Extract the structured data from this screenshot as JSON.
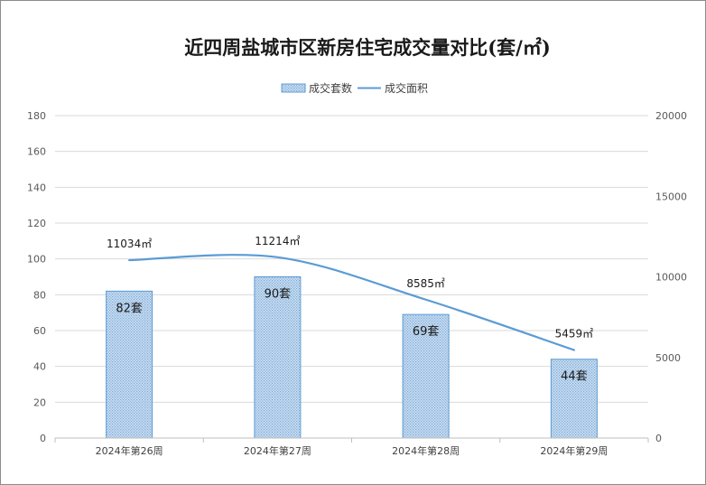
{
  "chart_data": {
    "type": "bar",
    "title": "近四周盐城市区新房住宅成交量对比(套/㎡)",
    "categories": [
      "2024年第26周",
      "2024年第27周",
      "2024年第28周",
      "2024年第29周"
    ],
    "series": [
      {
        "name": "成交套数",
        "type": "bar",
        "axis": "left",
        "values": [
          82,
          90,
          69,
          44
        ],
        "labels": [
          "82套",
          "90套",
          "69套",
          "44套"
        ],
        "color": "#bdd7ee",
        "border_color": "#5b9bd5"
      },
      {
        "name": "成交面积",
        "type": "line",
        "axis": "right",
        "values": [
          11034,
          11214,
          8585,
          5459
        ],
        "labels": [
          "11034㎡",
          "11214㎡",
          "8585㎡",
          "5459㎡"
        ],
        "color": "#5b9bd5"
      }
    ],
    "y_left": {
      "min": 0,
      "max": 180,
      "ticks": [
        "0",
        "20",
        "40",
        "60",
        "80",
        "100",
        "120",
        "140",
        "160",
        "180"
      ]
    },
    "y_right": {
      "min": 0,
      "max": 20000,
      "ticks": [
        "0",
        "5000",
        "10000",
        "15000",
        "20000"
      ]
    },
    "grid": true,
    "legend_position": "top"
  }
}
